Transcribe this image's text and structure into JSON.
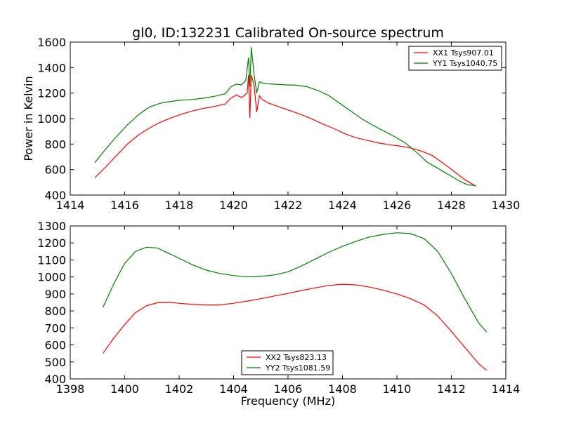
{
  "chart_data": [
    {
      "type": "line",
      "title": "gl0, ID:132231 Calibrated On-source spectrum",
      "xlabel": "",
      "ylabel": "Power in Kelvin",
      "xlim": [
        1414,
        1430
      ],
      "ylim": [
        400,
        1600
      ],
      "xticks": [
        "1414",
        "1416",
        "1418",
        "1420",
        "1422",
        "1424",
        "1426",
        "1428",
        "1430"
      ],
      "yticks": [
        "400",
        "600",
        "800",
        "1000",
        "1200",
        "1400",
        "1600"
      ],
      "grid": false,
      "legend_position": "top-right",
      "series": [
        {
          "name": "XX1 Tsys907.01",
          "color": "#ff0000",
          "x": [
            1414.9,
            1415.3,
            1415.7,
            1416.1,
            1416.5,
            1416.9,
            1417.3,
            1417.7,
            1418.1,
            1418.5,
            1418.9,
            1419.3,
            1419.7,
            1419.9,
            1420.1,
            1420.3,
            1420.5,
            1420.55,
            1420.6,
            1420.65,
            1420.75,
            1420.85,
            1420.95,
            1421.05,
            1421.3,
            1421.7,
            1422.1,
            1422.5,
            1422.9,
            1423.3,
            1423.7,
            1424.1,
            1424.5,
            1424.9,
            1425.3,
            1425.7,
            1426.1,
            1426.5,
            1426.9,
            1427.3,
            1427.7,
            1428.1,
            1428.5,
            1428.9
          ],
          "y": [
            535,
            620,
            710,
            800,
            870,
            925,
            970,
            1005,
            1035,
            1060,
            1080,
            1095,
            1115,
            1160,
            1185,
            1165,
            1200,
            1340,
            1005,
            1340,
            1270,
            1050,
            1180,
            1150,
            1120,
            1090,
            1060,
            1030,
            995,
            955,
            920,
            880,
            850,
            830,
            810,
            795,
            785,
            770,
            745,
            710,
            650,
            585,
            520,
            470
          ]
        },
        {
          "name": "YY1 Tsys1040.75",
          "color": "#008000",
          "x": [
            1414.9,
            1415.3,
            1415.7,
            1416.1,
            1416.5,
            1416.9,
            1417.3,
            1417.7,
            1418.1,
            1418.5,
            1418.9,
            1419.3,
            1419.7,
            1419.9,
            1420.1,
            1420.3,
            1420.45,
            1420.55,
            1420.6,
            1420.65,
            1420.75,
            1420.85,
            1420.95,
            1421.1,
            1421.5,
            1421.9,
            1422.3,
            1422.7,
            1423.1,
            1423.5,
            1423.9,
            1424.3,
            1424.7,
            1425.1,
            1425.5,
            1425.9,
            1426.3,
            1426.7,
            1427.1,
            1427.5,
            1427.9,
            1428.3,
            1428.6,
            1428.9
          ],
          "y": [
            655,
            760,
            860,
            950,
            1030,
            1090,
            1120,
            1135,
            1145,
            1150,
            1160,
            1175,
            1195,
            1250,
            1270,
            1265,
            1300,
            1480,
            1250,
            1560,
            1350,
            1200,
            1290,
            1275,
            1270,
            1265,
            1262,
            1250,
            1220,
            1180,
            1120,
            1060,
            1000,
            950,
            905,
            860,
            810,
            740,
            660,
            610,
            560,
            510,
            480,
            475
          ]
        }
      ]
    },
    {
      "type": "line",
      "title": "",
      "xlabel": "Frequency (MHz)",
      "ylabel": "",
      "xlim": [
        1398,
        1414
      ],
      "ylim": [
        400,
        1300
      ],
      "xticks": [
        "1398",
        "1400",
        "1402",
        "1404",
        "1406",
        "1408",
        "1410",
        "1412",
        "1414"
      ],
      "yticks": [
        "400",
        "500",
        "600",
        "700",
        "800",
        "900",
        "1000",
        "1100",
        "1200",
        "1300"
      ],
      "grid": false,
      "legend_position": "bottom-center",
      "series": [
        {
          "name": "XX2 Tsys823.13",
          "color": "#ff0000",
          "x": [
            1399.2,
            1399.6,
            1400.0,
            1400.4,
            1400.8,
            1401.2,
            1401.6,
            1402.0,
            1402.5,
            1403.0,
            1403.5,
            1404.0,
            1404.5,
            1405.0,
            1405.5,
            1406.0,
            1406.5,
            1407.0,
            1407.5,
            1408.0,
            1408.5,
            1409.0,
            1409.5,
            1410.0,
            1410.5,
            1411.0,
            1411.5,
            1412.0,
            1412.5,
            1413.0,
            1413.3
          ],
          "y": [
            550,
            640,
            720,
            790,
            830,
            848,
            850,
            845,
            838,
            835,
            835,
            845,
            858,
            872,
            888,
            903,
            920,
            936,
            950,
            957,
            953,
            940,
            922,
            900,
            872,
            835,
            770,
            680,
            585,
            490,
            450
          ]
        },
        {
          "name": "YY2 Tsys1081.59",
          "color": "#008000",
          "x": [
            1399.2,
            1399.6,
            1400.0,
            1400.4,
            1400.8,
            1401.2,
            1401.6,
            1402.0,
            1402.5,
            1403.0,
            1403.5,
            1404.0,
            1404.5,
            1405.0,
            1405.5,
            1406.0,
            1406.5,
            1407.0,
            1407.5,
            1408.0,
            1408.5,
            1409.0,
            1409.5,
            1410.0,
            1410.5,
            1411.0,
            1411.5,
            1412.0,
            1412.5,
            1413.0,
            1413.3
          ],
          "y": [
            820,
            960,
            1080,
            1150,
            1175,
            1170,
            1140,
            1110,
            1070,
            1040,
            1020,
            1008,
            1000,
            1003,
            1012,
            1030,
            1065,
            1105,
            1145,
            1180,
            1210,
            1235,
            1250,
            1260,
            1255,
            1225,
            1150,
            1020,
            870,
            730,
            675
          ]
        }
      ]
    }
  ]
}
